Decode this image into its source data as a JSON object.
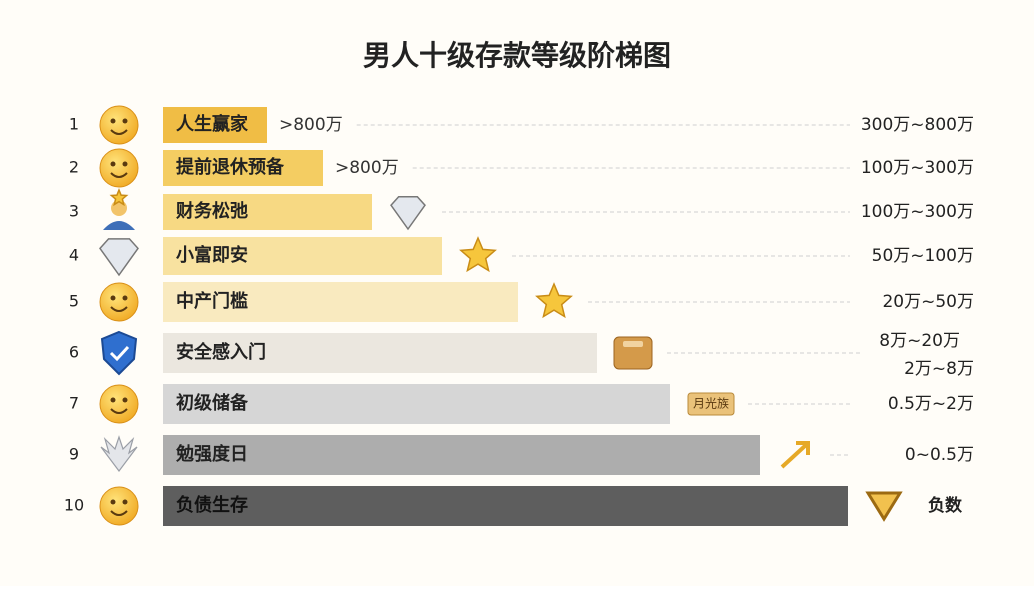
{
  "title": "男人十级存款等级阶梯图",
  "rows": [
    {
      "rank": "1",
      "label": "人生赢家",
      "note": ">800万",
      "range": [
        "300万~800万"
      ]
    },
    {
      "rank": "2",
      "label": "提前退休预备",
      "note": ">800万",
      "range": [
        "100万~300万"
      ]
    },
    {
      "rank": "3",
      "label": "财务松弛",
      "range": [
        "100万~300万"
      ]
    },
    {
      "rank": "4",
      "label": "小富即安",
      "range": [
        "50万~100万"
      ]
    },
    {
      "rank": "5",
      "label": "中产门槛",
      "range": [
        "20万~50万"
      ]
    },
    {
      "rank": "6",
      "label": "安全感入门",
      "range": [
        "8万~20万",
        "2万~8万"
      ]
    },
    {
      "rank": "7",
      "label": "初级储备",
      "tag": "月光族",
      "range": [
        "0.5万~2万"
      ]
    },
    {
      "rank": "9",
      "label": "勉强度日",
      "range": [
        "0~0.5万"
      ]
    },
    {
      "rank": "10",
      "label": "负债生存",
      "range": [
        "负数"
      ]
    }
  ]
}
